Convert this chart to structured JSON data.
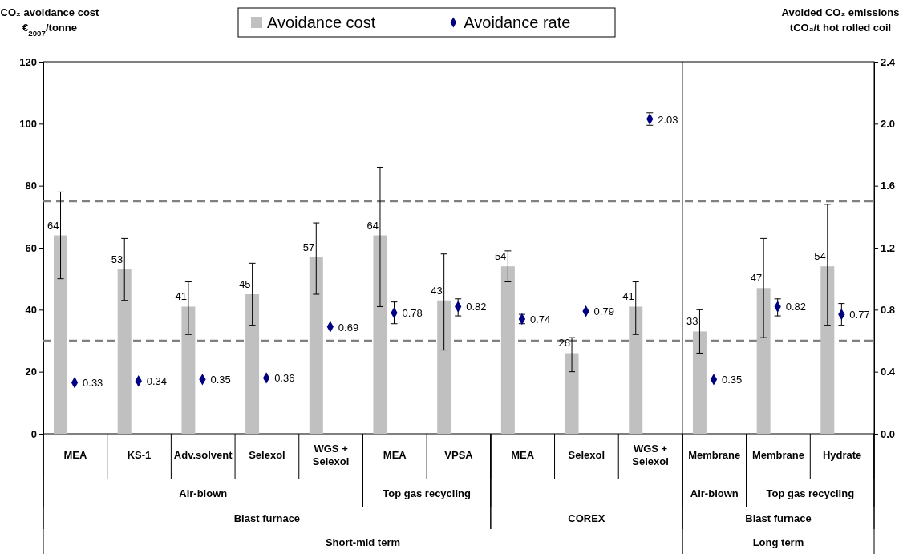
{
  "chart_data": {
    "type": "bar",
    "ylabel": "CO₂ avoidance cost\n€$_{2007}$/tonne",
    "y2label": "Avoided CO₂ emissions\ntCO₂/t hot rolled coil",
    "categories": [
      "MEA",
      "KS-1",
      "Adv.solvent",
      "Selexol",
      "WGS + Selexol",
      "MEA",
      "VPSA",
      "MEA",
      "Selexol",
      "WGS + Selexol",
      "Membrane",
      "Membrane",
      "Hydrate"
    ],
    "series": [
      {
        "name": "Avoidance cost",
        "color": "#c0c0c0",
        "values": [
          64,
          53,
          41,
          45,
          57,
          64,
          43,
          54,
          26,
          41,
          33,
          47,
          54
        ],
        "errors": [
          [
            50,
            78
          ],
          [
            43,
            63
          ],
          [
            32,
            49
          ],
          [
            35,
            55
          ],
          [
            45,
            68
          ],
          [
            41,
            86
          ],
          [
            27,
            58
          ],
          [
            49,
            59
          ],
          [
            20,
            31
          ],
          [
            32,
            49
          ],
          [
            26,
            40
          ],
          [
            31,
            63
          ],
          [
            35,
            74
          ]
        ]
      },
      {
        "name": "Avoidance rate",
        "type": "scatter",
        "axis": "y2",
        "color": "#000080",
        "marker": "diamond",
        "values": [
          0.33,
          0.34,
          0.35,
          0.36,
          0.69,
          0.78,
          0.82,
          0.74,
          0.79,
          2.03,
          0.35,
          0.82,
          0.77
        ],
        "errors": [
          null,
          null,
          null,
          null,
          null,
          [
            0.71,
            0.85
          ],
          [
            0.76,
            0.87
          ],
          [
            0.71,
            0.77
          ],
          null,
          [
            1.99,
            2.07
          ],
          null,
          [
            0.76,
            0.87
          ],
          [
            0.7,
            0.84
          ]
        ]
      }
    ],
    "ylim": [
      0,
      120
    ],
    "yticks": [
      0,
      20,
      40,
      60,
      80,
      100,
      120
    ],
    "y2lim": [
      0,
      2.4
    ],
    "y2ticks": [
      {
        "value": 0,
        "label": "0.0"
      },
      {
        "value": 0.4,
        "label": "0.4"
      },
      {
        "value": 0.8,
        "label": "0.8"
      },
      {
        "value": 1.2,
        "label": "1.2"
      },
      {
        "value": 1.6,
        "label": "1.6"
      },
      {
        "value": 2.0,
        "label": "2.0"
      },
      {
        "value": 2.4,
        "label": "2.4"
      }
    ],
    "ref_lines": [
      {
        "axis": "y2",
        "value": 1.5,
        "color": "#808080",
        "line_style": "dashed"
      },
      {
        "axis": "y2",
        "value": 0.6,
        "color": "#808080",
        "line_style": "dashed"
      }
    ],
    "annotations": [
      "Air-blown",
      "Top gas recycling",
      "Blast furnace",
      "COREX",
      "Short-mid term",
      "Air-blown",
      "Top gas recycling",
      "Blast furnace",
      "Long term"
    ],
    "legend": "top",
    "data_labels": true,
    "grid": false
  }
}
